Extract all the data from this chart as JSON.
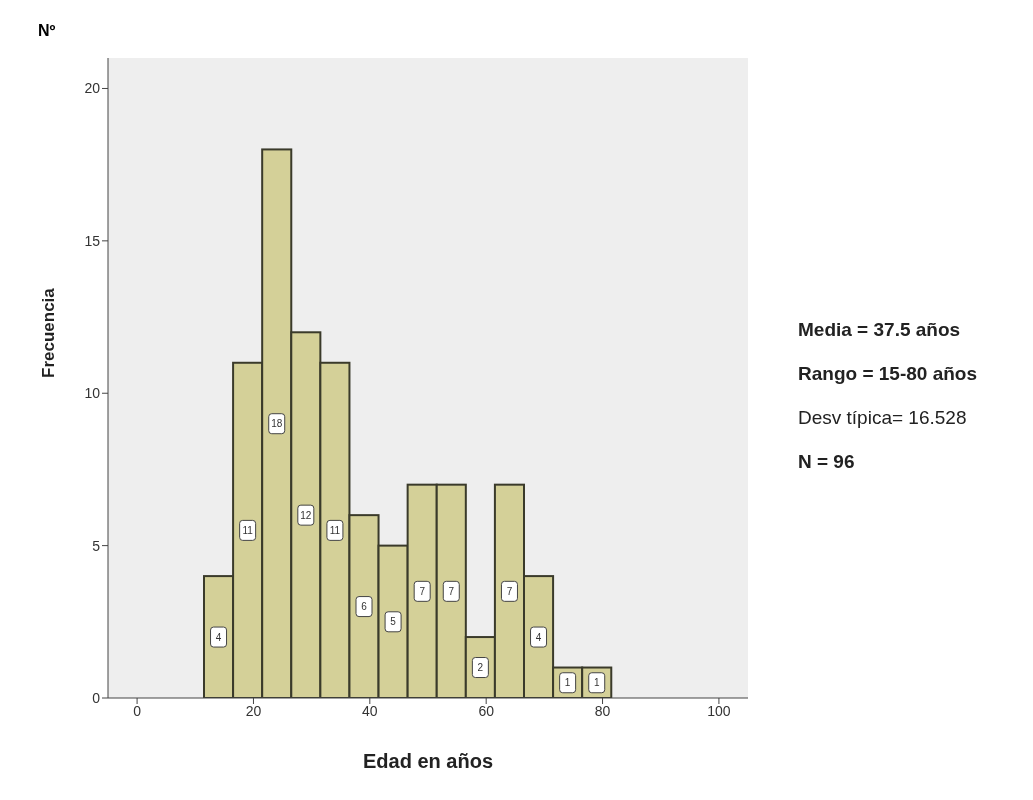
{
  "chart_data": {
    "type": "histogram",
    "xlabel": "Edad   en años",
    "ylabel": "Frecuencia",
    "annotations": [
      "Nº",
      "Media = 37.5 años",
      "Rango = 15-80 años",
      "Desv típica= 16.528",
      "N = 96"
    ],
    "bins": [
      11.5,
      16.5,
      21.5,
      26.5,
      31.5,
      36.5,
      41.5,
      46.5,
      51.5,
      56.5,
      61.5,
      66.5,
      71.5,
      76.5,
      81.5
    ],
    "values": [
      4,
      11,
      18,
      12,
      11,
      6,
      5,
      7,
      7,
      2,
      7,
      4,
      1,
      1
    ],
    "color": "#d4d098",
    "xlim": [
      -5,
      105
    ],
    "xticks": [
      0,
      20,
      40,
      60,
      80,
      100
    ],
    "ylim": [
      0,
      21
    ],
    "yticks": [
      0,
      5,
      10,
      15,
      20
    ],
    "data_labels": true
  }
}
